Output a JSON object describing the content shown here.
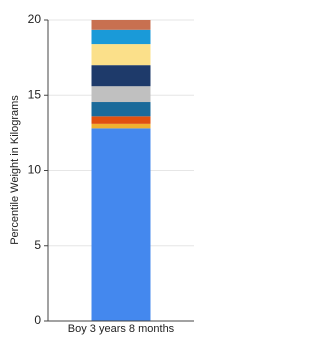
{
  "chart_data": {
    "type": "stacked_bar",
    "y_label": "Percentile Weight in Kilograms",
    "categories": [
      "Boy 3 years 8 months"
    ],
    "series": [
      {
        "color": "#4488ee",
        "values": [
          12.8
        ]
      },
      {
        "color": "#f0b030",
        "values": [
          0.3
        ]
      },
      {
        "color": "#e05010",
        "values": [
          0.5
        ]
      },
      {
        "color": "#1a6a9a",
        "values": [
          0.95
        ]
      },
      {
        "color": "#c0c0c0",
        "values": [
          1.05
        ]
      },
      {
        "color": "#1e3a6a",
        "values": [
          1.4
        ]
      },
      {
        "color": "#fbe08a",
        "values": [
          1.4
        ]
      },
      {
        "color": "#1a9ad8",
        "values": [
          0.95
        ]
      },
      {
        "color": "#c87050",
        "values": [
          0.65
        ]
      }
    ],
    "ylim": [
      0,
      20
    ],
    "yticks": [
      0,
      5,
      10,
      15,
      20
    ],
    "grid": true
  }
}
